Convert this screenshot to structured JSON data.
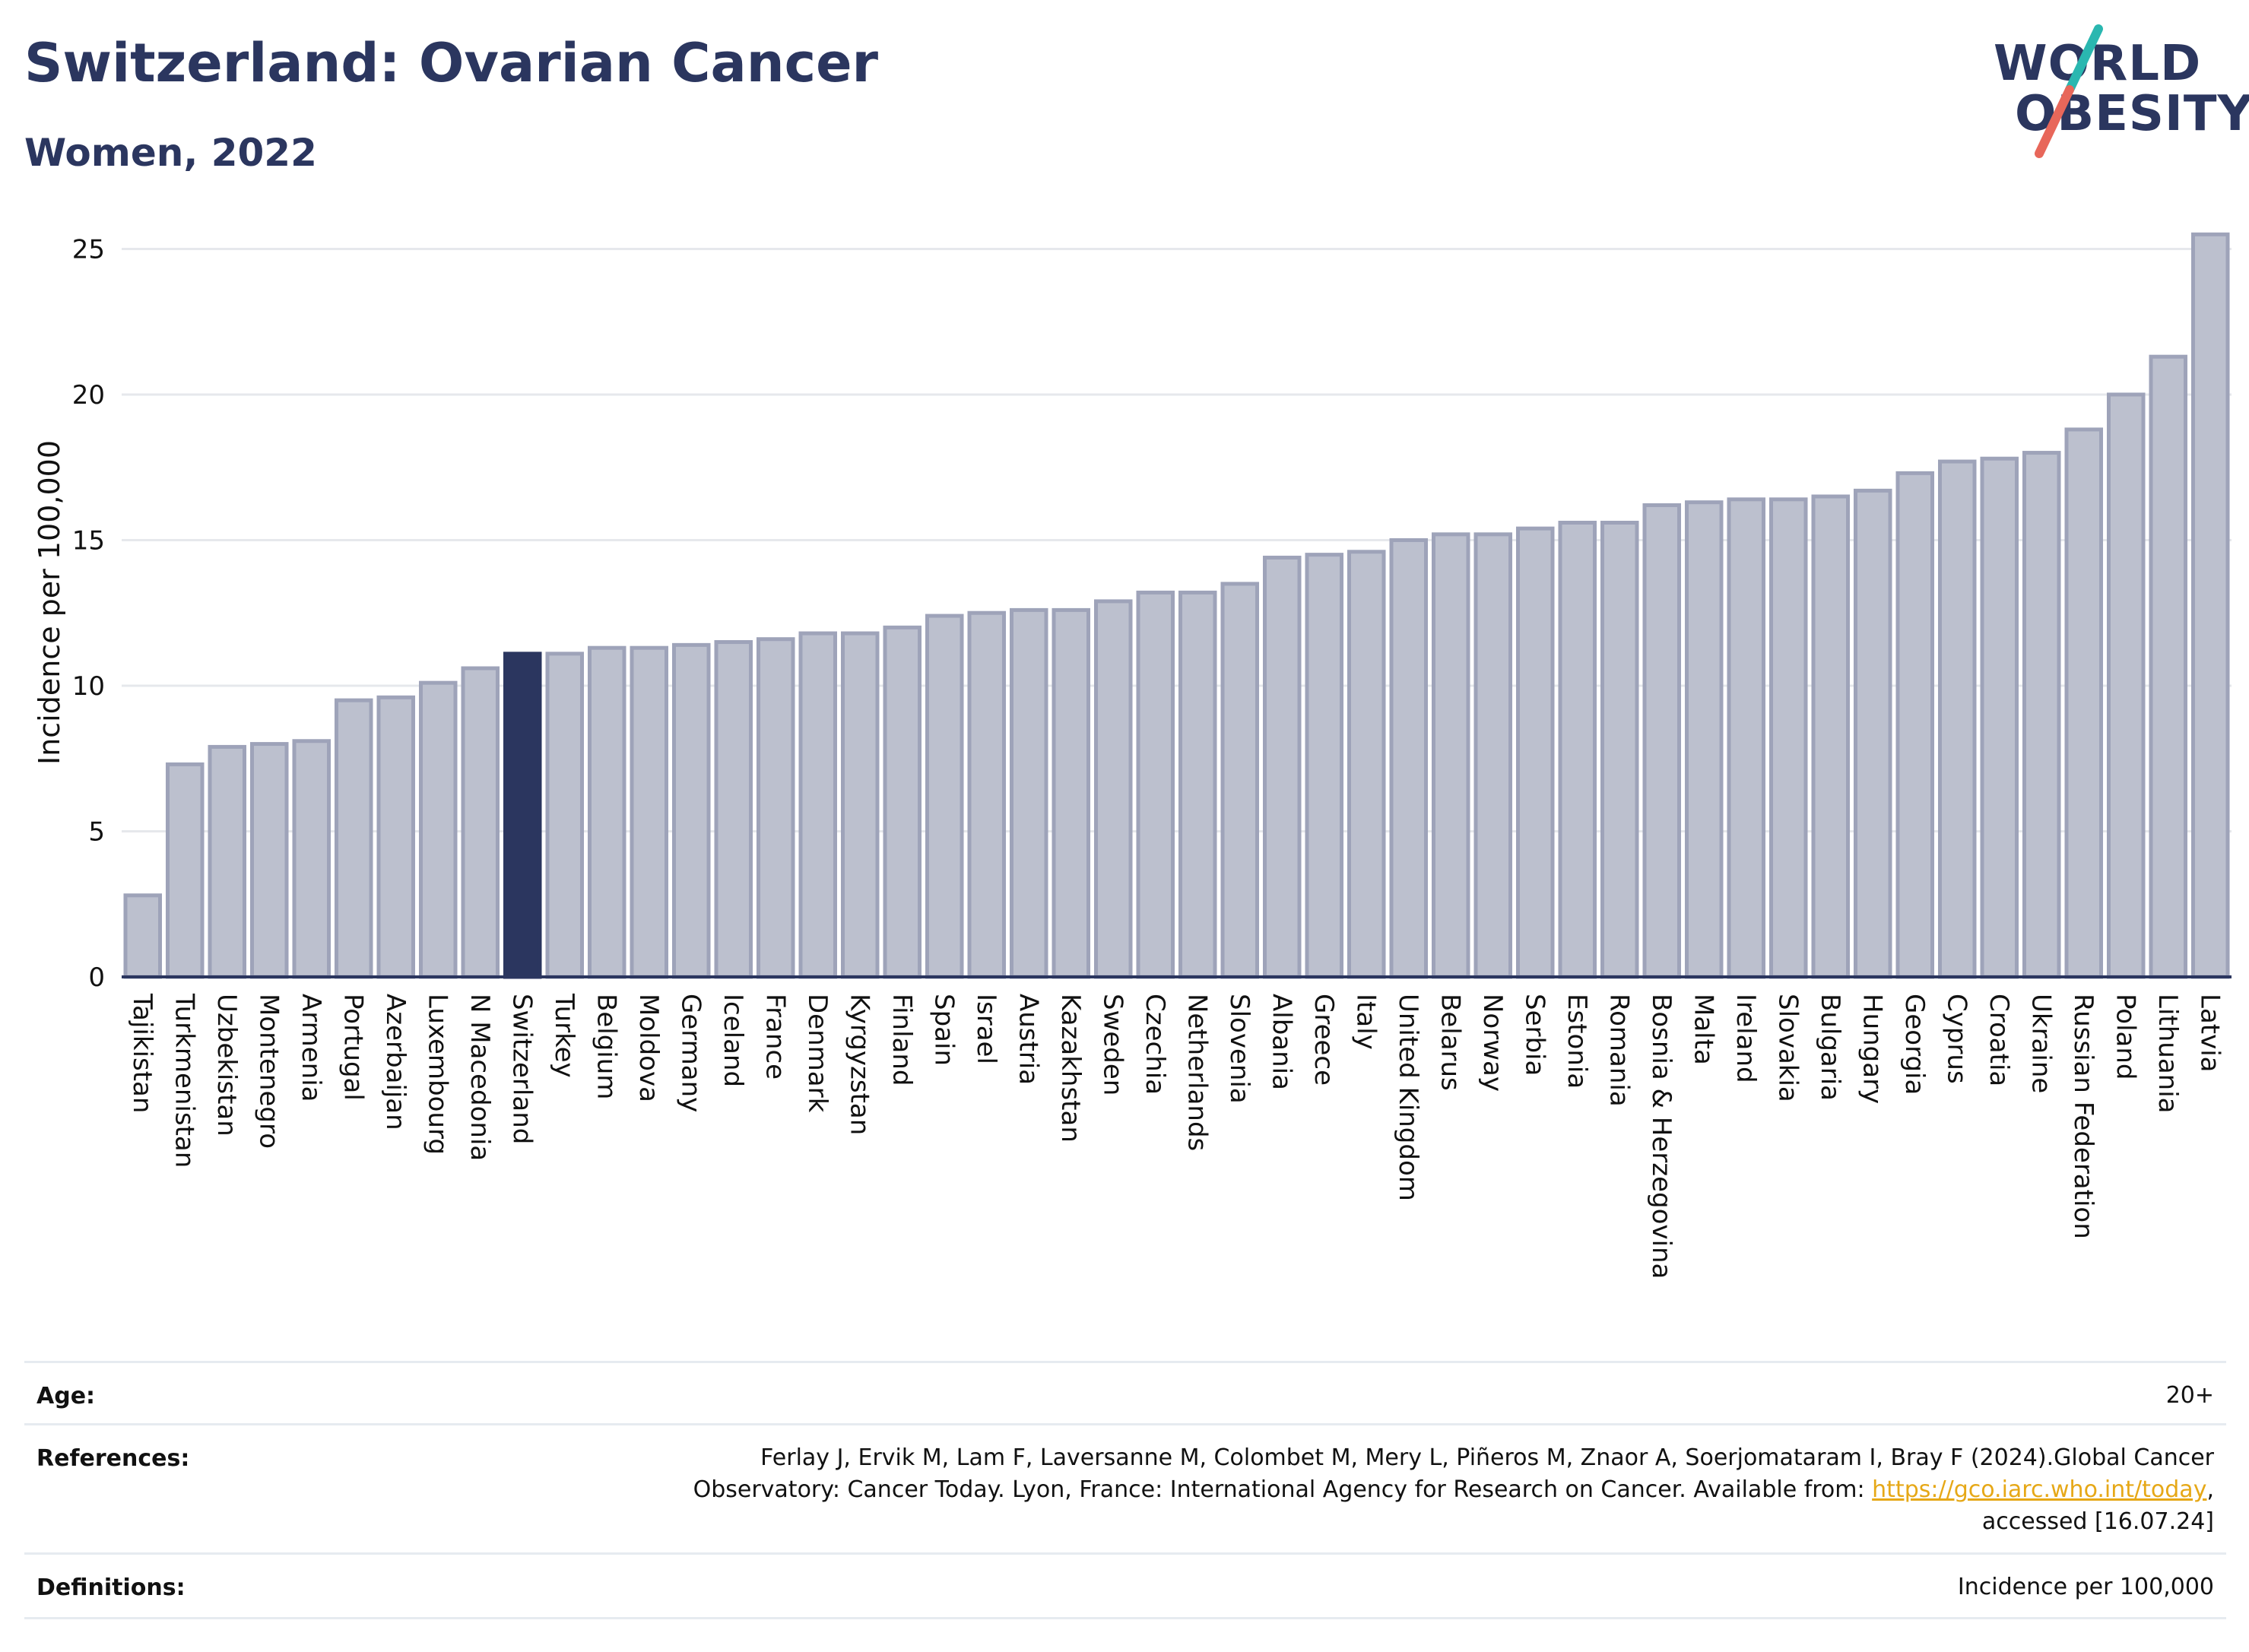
{
  "header": {
    "title": "Switzerland: Ovarian Cancer",
    "subtitle": "Women, 2022"
  },
  "logo": {
    "line1": "WORLD",
    "line2": "OBESITY",
    "colors": {
      "text": "#2b365f",
      "slash_top": "#2ab7b0",
      "slash_bottom": "#e8675a"
    }
  },
  "colors": {
    "bar_default": "#bcc0ce",
    "bar_default_stroke": "#9ea3b9",
    "bar_highlight": "#2b365f",
    "grid": "#e6e8ec",
    "axis": "#2b365f"
  },
  "chart_data": {
    "type": "bar",
    "title": "",
    "xlabel": "",
    "ylabel": "Incidence per 100,000",
    "ylim": [
      0,
      26.5
    ],
    "yticks": [
      0,
      5,
      10,
      15,
      20,
      25
    ],
    "grid": true,
    "highlight": "Switzerland",
    "categories": [
      "Tajikistan",
      "Turkmenistan",
      "Uzbekistan",
      "Montenegro",
      "Armenia",
      "Portugal",
      "Azerbaijan",
      "Luxembourg",
      "N Macedonia",
      "Switzerland",
      "Turkey",
      "Belgium",
      "Moldova",
      "Germany",
      "Iceland",
      "France",
      "Denmark",
      "Kyrgyzstan",
      "Finland",
      "Spain",
      "Israel",
      "Austria",
      "Kazakhstan",
      "Sweden",
      "Czechia",
      "Netherlands",
      "Slovenia",
      "Albania",
      "Greece",
      "Italy",
      "United Kingdom",
      "Belarus",
      "Norway",
      "Serbia",
      "Estonia",
      "Romania",
      "Bosnia & Herzegovina",
      "Malta",
      "Ireland",
      "Slovakia",
      "Bulgaria",
      "Hungary",
      "Georgia",
      "Cyprus",
      "Croatia",
      "Ukraine",
      "Russian Federation",
      "Poland",
      "Lithuania",
      "Latvia"
    ],
    "values": [
      2.8,
      7.3,
      7.9,
      8.0,
      8.1,
      9.5,
      9.6,
      10.1,
      10.6,
      11.1,
      11.1,
      11.3,
      11.3,
      11.4,
      11.5,
      11.6,
      11.8,
      11.8,
      12.0,
      12.4,
      12.5,
      12.6,
      12.6,
      12.9,
      13.2,
      13.2,
      13.5,
      14.4,
      14.5,
      14.6,
      15.0,
      15.2,
      15.2,
      15.4,
      15.6,
      15.6,
      16.2,
      16.3,
      16.4,
      16.4,
      16.5,
      16.7,
      17.3,
      17.7,
      17.8,
      18.0,
      18.8,
      20.0,
      21.3,
      25.5
    ]
  },
  "meta": {
    "age_label": "Age:",
    "age_value": "20+",
    "references_label": "References:",
    "references_line1": "Ferlay J, Ervik M, Lam F, Laversanne M, Colombet M, Mery L, Piñeros M, Znaor A, Soerjomataram I, Bray F (2024).Global Cancer",
    "references_line2_pre": "Observatory: Cancer Today. Lyon, France: International Agency for Research on Cancer. Available from: ",
    "references_link": "https://gco.iarc.who.int/today",
    "references_line2_post": ",",
    "references_line3": "accessed [16.07.24]",
    "definitions_label": "Definitions:",
    "definitions_value": "Incidence per 100,000"
  }
}
